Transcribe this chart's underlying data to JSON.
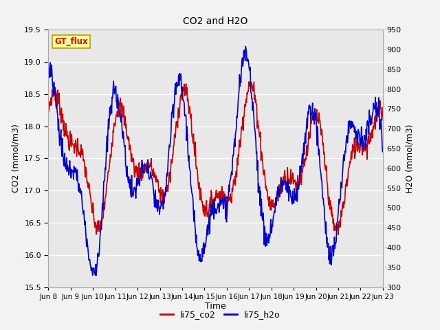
{
  "title": "CO2 and H2O",
  "xlabel": "Time",
  "ylabel_left": "CO2 (mmol/m3)",
  "ylabel_right": "H2O (mmol/m3)",
  "co2_ylim": [
    15.5,
    19.5
  ],
  "h2o_ylim": [
    300,
    950
  ],
  "co2_yticks": [
    15.5,
    16.0,
    16.5,
    17.0,
    17.5,
    18.0,
    18.5,
    19.0,
    19.5
  ],
  "h2o_yticks": [
    300,
    350,
    400,
    450,
    500,
    550,
    600,
    650,
    700,
    750,
    800,
    850,
    900,
    950
  ],
  "xtick_labels": [
    "Jun 8",
    "Jun 9",
    "Jun 10",
    "Jun 11",
    "Jun 12",
    "Jun 13",
    "Jun 14",
    "Jun 15",
    "Jun 16",
    "Jun 17",
    "Jun 18",
    "Jun 19",
    "Jun 20",
    "Jun 21",
    "Jun 22",
    "Jun 23"
  ],
  "co2_color": "#cc0000",
  "h2o_color": "#0000cc",
  "plot_bg": "#e8e8e8",
  "fig_bg": "#f2f2f2",
  "annotation_text": "GT_flux",
  "annotation_bg": "#ffff99",
  "annotation_border": "#aaa800",
  "legend_co2": "li75_co2",
  "legend_h2o": "li75_h2o",
  "linewidth": 1.2
}
